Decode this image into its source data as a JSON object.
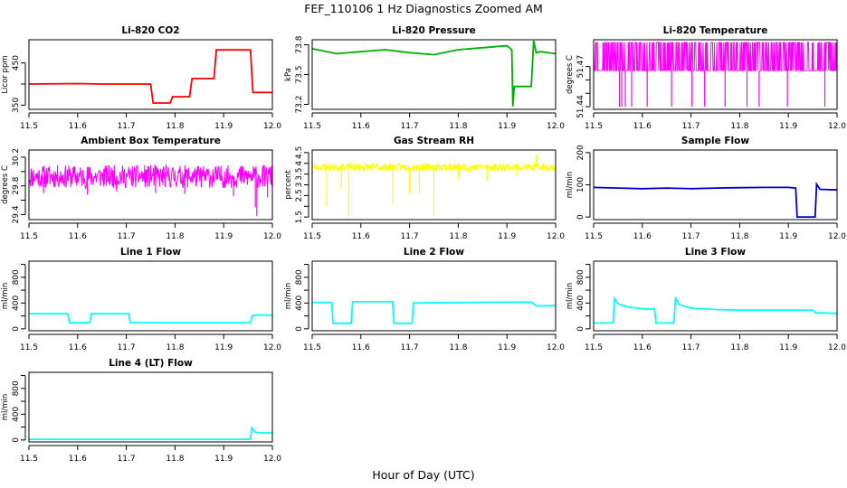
{
  "figure": {
    "title": "FEF_110106  1 Hz Diagnostics Zoomed AM",
    "xlabel": "Hour of Day (UTC)"
  },
  "chart_data": [
    {
      "type": "line",
      "title": "Li-820 CO2",
      "ylabel": "Licor ppm",
      "color": "#ff0000",
      "xlim": [
        11.5,
        12.0
      ],
      "ylim": [
        340,
        505
      ],
      "xticks": [
        "11.5",
        "11.6",
        "11.7",
        "11.8",
        "11.9",
        "12.0"
      ],
      "yticks": [
        350,
        400,
        450
      ],
      "ytick_labels": [
        "350",
        "",
        "450"
      ],
      "x": [
        11.5,
        11.6,
        11.65,
        11.7,
        11.75,
        11.755,
        11.79,
        11.795,
        11.83,
        11.835,
        11.88,
        11.885,
        11.955,
        11.96,
        12.0
      ],
      "y": [
        400,
        401,
        400,
        400,
        400,
        355,
        355,
        370,
        370,
        413,
        413,
        481,
        481,
        380,
        380
      ]
    },
    {
      "type": "line",
      "title": "Li-820 Pressure",
      "ylabel": "kPa",
      "color": "#00b000",
      "xlim": [
        11.5,
        12.0
      ],
      "ylim": [
        73.15,
        73.85
      ],
      "xticks": [
        "11.5",
        "11.6",
        "11.7",
        "11.8",
        "11.9",
        "12.0"
      ],
      "yticks": [
        73.2,
        73.5,
        73.8
      ],
      "ytick_labels": [
        "73.2",
        "73.5",
        "73.8"
      ],
      "x": [
        11.5,
        11.52,
        11.55,
        11.6,
        11.65,
        11.7,
        11.75,
        11.8,
        11.85,
        11.9,
        11.91,
        11.912,
        11.915,
        11.92,
        11.95,
        11.955,
        11.96,
        11.97,
        12.0
      ],
      "y": [
        73.76,
        73.74,
        73.71,
        73.73,
        73.75,
        73.72,
        73.7,
        73.75,
        73.77,
        73.79,
        73.75,
        73.18,
        73.38,
        73.38,
        73.38,
        73.84,
        73.72,
        73.73,
        73.71
      ]
    },
    {
      "type": "line",
      "title": "Li-820 Temperature",
      "ylabel": "degrees C",
      "color": "#ff00ff",
      "xlim": [
        11.5,
        12.0
      ],
      "ylim": [
        51.438,
        51.49
      ],
      "xticks": [
        "11.5",
        "11.6",
        "11.7",
        "11.8",
        "11.9",
        "12.0"
      ],
      "yticks": [
        51.44,
        51.45,
        51.46,
        51.47
      ],
      "ytick_labels": [
        "51.44",
        "",
        "",
        "51.47"
      ],
      "base": 51.467,
      "high": 51.488,
      "noise_frac": 0.4,
      "noise_seed": 7,
      "spikes": [
        {
          "x": 11.553,
          "y": 51.44
        },
        {
          "x": 11.558,
          "y": 51.44
        },
        {
          "x": 11.565,
          "y": 51.44
        },
        {
          "x": 11.578,
          "y": 51.44
        },
        {
          "x": 11.61,
          "y": 51.44
        },
        {
          "x": 11.66,
          "y": 51.44
        },
        {
          "x": 11.702,
          "y": 51.44
        },
        {
          "x": 11.728,
          "y": 51.44
        },
        {
          "x": 11.77,
          "y": 51.44
        },
        {
          "x": 11.815,
          "y": 51.44
        },
        {
          "x": 11.84,
          "y": 51.44
        },
        {
          "x": 11.898,
          "y": 51.44
        },
        {
          "x": 11.975,
          "y": 51.44
        }
      ]
    },
    {
      "type": "line",
      "title": "Ambient Box Temperature",
      "ylabel": "degrees C",
      "color": "#ff00ff",
      "xlim": [
        11.5,
        12.0
      ],
      "ylim": [
        29.33,
        30.3
      ],
      "xticks": [
        "11.5",
        "11.6",
        "11.7",
        "11.8",
        "11.9",
        "12.0"
      ],
      "yticks": [
        29.4,
        29.6,
        29.8,
        30.0,
        30.2
      ],
      "ytick_labels": [
        "29.4",
        "",
        "29.8",
        "",
        "30.2"
      ],
      "base": 29.93,
      "amp": 0.16,
      "noise_seed": 11,
      "spikes": [
        {
          "x": 11.53,
          "y": 29.7
        },
        {
          "x": 11.62,
          "y": 29.68
        },
        {
          "x": 11.68,
          "y": 29.72
        },
        {
          "x": 11.76,
          "y": 29.7
        },
        {
          "x": 11.82,
          "y": 29.69
        },
        {
          "x": 11.92,
          "y": 29.66
        },
        {
          "x": 11.965,
          "y": 29.5
        },
        {
          "x": 11.968,
          "y": 29.38
        },
        {
          "x": 11.99,
          "y": 29.64
        }
      ]
    },
    {
      "type": "line",
      "title": "Gas Stream RH",
      "ylabel": "percent",
      "color": "#ffff00",
      "xlim": [
        11.5,
        12.0
      ],
      "ylim": [
        1.38,
        4.62
      ],
      "xticks": [
        "11.5",
        "11.6",
        "11.7",
        "11.8",
        "11.9",
        "12.0"
      ],
      "yticks": [
        1.5,
        2.0,
        2.5,
        3.0,
        3.5,
        4.0,
        4.5
      ],
      "ytick_labels": [
        "1.5",
        "",
        "2.5",
        "3",
        "3.5",
        "4",
        "4.5"
      ],
      "base": 3.82,
      "amp": 0.18,
      "noise_seed": 23,
      "spikes": [
        {
          "x": 11.53,
          "y": 2.0
        },
        {
          "x": 11.56,
          "y": 2.8
        },
        {
          "x": 11.575,
          "y": 1.5
        },
        {
          "x": 11.665,
          "y": 2.1
        },
        {
          "x": 11.7,
          "y": 2.6
        },
        {
          "x": 11.72,
          "y": 2.6
        },
        {
          "x": 11.75,
          "y": 1.55
        },
        {
          "x": 11.8,
          "y": 3.3
        },
        {
          "x": 11.86,
          "y": 3.2
        },
        {
          "x": 11.92,
          "y": 3.4
        },
        {
          "x": 11.96,
          "y": 4.4
        }
      ]
    },
    {
      "type": "line",
      "title": "Sample Flow",
      "ylabel": "ml/min",
      "color": "#0000cc",
      "xlim": [
        11.5,
        12.0
      ],
      "ylim": [
        -8,
        208
      ],
      "xticks": [
        "11.5",
        "11.6",
        "11.7",
        "11.8",
        "11.9",
        "12.0"
      ],
      "yticks": [
        0,
        100,
        200
      ],
      "ytick_labels": [
        "0",
        "100",
        "200"
      ],
      "x": [
        11.5,
        11.55,
        11.6,
        11.65,
        11.7,
        11.75,
        11.8,
        11.85,
        11.9,
        11.915,
        11.918,
        11.955,
        11.958,
        11.965,
        12.0
      ],
      "y": [
        92,
        90,
        88,
        90,
        88,
        90,
        91,
        92,
        92,
        90,
        0,
        0,
        102,
        86,
        84
      ]
    },
    {
      "type": "line",
      "title": "Line 1 Flow",
      "ylabel": "ml/min",
      "color": "#00ffff",
      "xlim": [
        11.5,
        12.0
      ],
      "ylim": [
        -30,
        1050
      ],
      "xticks": [
        "11.5",
        "11.6",
        "11.7",
        "11.8",
        "11.9",
        "12.0"
      ],
      "yticks": [
        0,
        200,
        400,
        600,
        800,
        1000
      ],
      "ytick_labels": [
        "0",
        "",
        "400",
        "",
        "800",
        ""
      ],
      "x": [
        11.5,
        11.58,
        11.583,
        11.625,
        11.628,
        11.705,
        11.708,
        11.955,
        11.958,
        11.97,
        12.0
      ],
      "y": [
        235,
        235,
        95,
        95,
        235,
        235,
        95,
        95,
        200,
        215,
        210
      ]
    },
    {
      "type": "line",
      "title": "Line 2 Flow",
      "ylabel": "ml/min",
      "color": "#00ffff",
      "xlim": [
        11.5,
        12.0
      ],
      "ylim": [
        -30,
        1050
      ],
      "xticks": [
        "11.5",
        "11.6",
        "11.7",
        "11.8",
        "11.9",
        "12.0"
      ],
      "yticks": [
        0,
        200,
        400,
        600,
        800,
        1000
      ],
      "ytick_labels": [
        "0",
        "",
        "400",
        "",
        "800",
        ""
      ],
      "x": [
        11.5,
        11.54,
        11.543,
        11.58,
        11.583,
        11.665,
        11.668,
        11.705,
        11.708,
        11.8,
        11.95,
        11.96,
        12.0
      ],
      "y": [
        410,
        410,
        85,
        85,
        420,
        420,
        85,
        85,
        400,
        410,
        415,
        355,
        360
      ]
    },
    {
      "type": "line",
      "title": "Line 3 Flow",
      "ylabel": "ml/min",
      "color": "#00ffff",
      "xlim": [
        11.5,
        12.0
      ],
      "ylim": [
        -30,
        1050
      ],
      "xticks": [
        "11.5",
        "11.6",
        "11.7",
        "11.8",
        "11.9",
        "12.0"
      ],
      "yticks": [
        0,
        200,
        400,
        600,
        800,
        1000
      ],
      "ytick_labels": [
        "0",
        "",
        "400",
        "",
        "800",
        ""
      ],
      "x": [
        11.5,
        11.54,
        11.543,
        11.55,
        11.57,
        11.59,
        11.6,
        11.625,
        11.628,
        11.665,
        11.668,
        11.675,
        11.7,
        11.75,
        11.8,
        11.9,
        11.95,
        11.955,
        12.0
      ],
      "y": [
        90,
        90,
        470,
        390,
        340,
        320,
        310,
        310,
        90,
        90,
        490,
        380,
        320,
        300,
        290,
        290,
        290,
        250,
        240
      ]
    },
    {
      "type": "line",
      "title": "Line 4 (LT) Flow",
      "ylabel": "ml/min",
      "color": "#00ffff",
      "xlim": [
        11.5,
        12.0
      ],
      "ylim": [
        -30,
        1050
      ],
      "xticks": [
        "11.5",
        "11.6",
        "11.7",
        "11.8",
        "11.9",
        "12.0"
      ],
      "yticks": [
        0,
        200,
        400,
        600,
        800,
        1000
      ],
      "ytick_labels": [
        "0",
        "",
        "400",
        "",
        "800",
        ""
      ],
      "x": [
        11.5,
        11.6,
        11.7,
        11.8,
        11.9,
        11.955,
        11.958,
        11.965,
        11.975,
        12.0
      ],
      "y": [
        10,
        10,
        10,
        10,
        10,
        10,
        190,
        120,
        110,
        110
      ]
    }
  ]
}
